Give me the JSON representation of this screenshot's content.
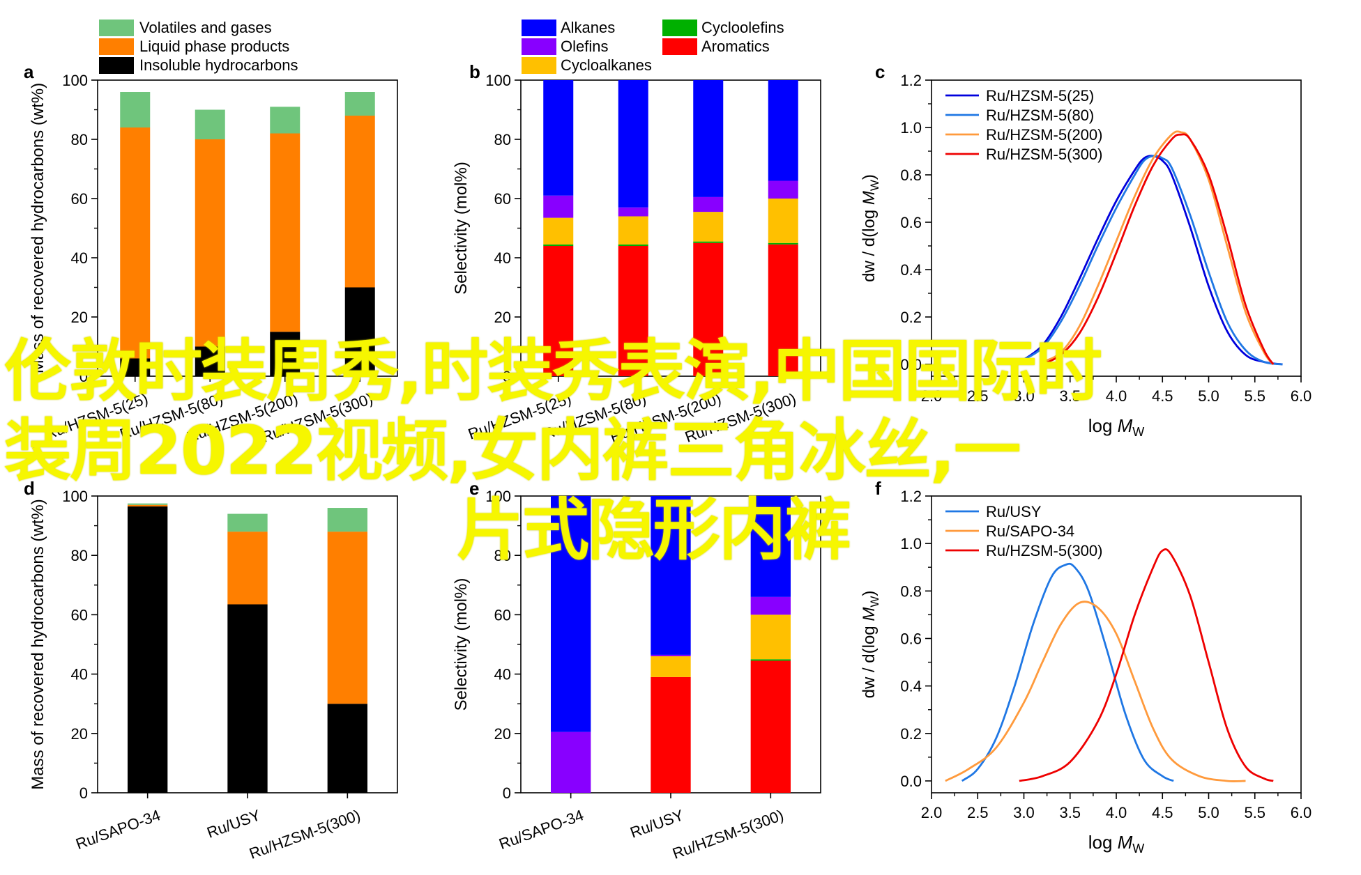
{
  "overlay": {
    "line1": "伦敦时装周秀,时装秀表演,中国国际时",
    "line2": "装周2022视频,女内裤三角冰丝,一",
    "line3": "片式隐形内裤"
  },
  "chart_data": [
    {
      "panel": "a",
      "type": "bar",
      "stacked": true,
      "ylabel": "Mass of recovered hydrocarbons (wt%)",
      "ylim": [
        0,
        100
      ],
      "yticks": [
        0,
        20,
        40,
        60,
        80,
        100
      ],
      "categories": [
        "Ru/HZSM-5(25)",
        "Ru/HZSM-5(80)",
        "Ru/HZSM-5(200)",
        "Ru/HZSM-5(300)"
      ],
      "legend": "top-left, outside plot",
      "series": [
        {
          "name": "Insoluble hydrocarbons",
          "color": "#000000",
          "values": [
            6,
            10,
            15,
            30
          ]
        },
        {
          "name": "Liquid phase products",
          "color": "#ff7f00",
          "values": [
            78,
            70,
            67,
            58
          ]
        },
        {
          "name": "Volatiles and gases",
          "color": "#6fc57c",
          "values": [
            12,
            10,
            9,
            8
          ]
        }
      ]
    },
    {
      "panel": "b",
      "type": "bar",
      "stacked": true,
      "ylabel": "Selectivity (mol%)",
      "ylim": [
        0,
        100
      ],
      "yticks": [
        0,
        20,
        40,
        60,
        80,
        100
      ],
      "categories": [
        "Ru/HZSM-5(25)",
        "Ru/HZSM-5(80)",
        "Ru/HZSM-5(200)",
        "Ru/HZSM-5(300)"
      ],
      "legend": "top, outside plot, two columns",
      "series": [
        {
          "name": "Aromatics",
          "color": "#ff0000",
          "values": [
            44,
            44,
            45,
            44.5
          ]
        },
        {
          "name": "Cycloolefins",
          "color": "#00b000",
          "values": [
            0.5,
            0.5,
            0.5,
            0.5
          ]
        },
        {
          "name": "Cycloalkanes",
          "color": "#ffc000",
          "values": [
            9,
            9.5,
            10,
            15
          ]
        },
        {
          "name": "Olefins",
          "color": "#8800ff",
          "values": [
            7.5,
            3,
            5,
            6
          ]
        },
        {
          "name": "Alkanes",
          "color": "#0000ff",
          "values": [
            39,
            43,
            39.5,
            34
          ]
        }
      ]
    },
    {
      "panel": "c",
      "type": "line",
      "xlabel": "log M_W",
      "ylabel": "dw / d(log M_W)",
      "xlim": [
        2.0,
        6.0
      ],
      "ylim": [
        -0.05,
        1.2
      ],
      "xticks": [
        2.0,
        2.5,
        3.0,
        3.5,
        4.0,
        4.5,
        5.0,
        5.5,
        6.0
      ],
      "yticks": [
        0.0,
        0.2,
        0.4,
        0.6,
        0.8,
        1.0,
        1.2
      ],
      "legend": "top-left",
      "series": [
        {
          "name": "Ru/HZSM-5(25)",
          "color": "#0000dd",
          "x": [
            3.0,
            3.2,
            3.4,
            3.6,
            3.8,
            4.0,
            4.2,
            4.3,
            4.4,
            4.5,
            4.6,
            4.8,
            5.0,
            5.2,
            5.4,
            5.6,
            5.8
          ],
          "y": [
            0.02,
            0.08,
            0.2,
            0.36,
            0.53,
            0.69,
            0.82,
            0.87,
            0.88,
            0.86,
            0.8,
            0.58,
            0.33,
            0.14,
            0.04,
            0.01,
            0.0
          ]
        },
        {
          "name": "Ru/HZSM-5(80)",
          "color": "#1f77e4",
          "x": [
            3.0,
            3.2,
            3.4,
            3.6,
            3.8,
            4.0,
            4.2,
            4.3,
            4.4,
            4.5,
            4.6,
            4.8,
            5.0,
            5.2,
            5.4,
            5.6,
            5.8
          ],
          "y": [
            0.02,
            0.07,
            0.18,
            0.33,
            0.5,
            0.66,
            0.8,
            0.86,
            0.88,
            0.87,
            0.83,
            0.63,
            0.39,
            0.18,
            0.06,
            0.01,
            0.0
          ]
        },
        {
          "name": "Ru/HZSM-5(200)",
          "color": "#ff9a3c",
          "x": [
            3.2,
            3.4,
            3.6,
            3.8,
            4.0,
            4.2,
            4.4,
            4.6,
            4.7,
            4.8,
            5.0,
            5.2,
            5.4,
            5.6,
            5.7
          ],
          "y": [
            0.01,
            0.05,
            0.16,
            0.33,
            0.52,
            0.71,
            0.87,
            0.97,
            0.98,
            0.95,
            0.78,
            0.5,
            0.22,
            0.05,
            0.0
          ]
        },
        {
          "name": "Ru/HZSM-5(300)",
          "color": "#ee0000",
          "x": [
            3.2,
            3.4,
            3.6,
            3.8,
            4.0,
            4.2,
            4.4,
            4.6,
            4.7,
            4.8,
            5.0,
            5.2,
            5.4,
            5.6,
            5.7
          ],
          "y": [
            0.0,
            0.04,
            0.13,
            0.28,
            0.47,
            0.67,
            0.84,
            0.95,
            0.97,
            0.95,
            0.8,
            0.54,
            0.25,
            0.06,
            0.0
          ]
        }
      ]
    },
    {
      "panel": "d",
      "type": "bar",
      "stacked": true,
      "ylabel": "Mass of recovered hydrocarbons (wt%)",
      "ylim": [
        0,
        100
      ],
      "yticks": [
        0,
        20,
        40,
        60,
        80,
        100
      ],
      "categories": [
        "Ru/SAPO-34",
        "Ru/USY",
        "Ru/HZSM-5(300)"
      ],
      "series": [
        {
          "name": "Insoluble hydrocarbons",
          "color": "#000000",
          "values": [
            96.5,
            63.5,
            30
          ]
        },
        {
          "name": "Liquid phase products",
          "color": "#ff7f00",
          "values": [
            0.5,
            24.5,
            58
          ]
        },
        {
          "name": "Volatiles and gases",
          "color": "#6fc57c",
          "values": [
            0.5,
            6,
            8
          ]
        }
      ]
    },
    {
      "panel": "e",
      "type": "bar",
      "stacked": true,
      "ylabel": "Selectivity (mol%)",
      "ylim": [
        0,
        100
      ],
      "yticks": [
        0,
        20,
        40,
        60,
        80,
        100
      ],
      "categories": [
        "Ru/SAPO-34",
        "Ru/USY",
        "Ru/HZSM-5(300)"
      ],
      "series": [
        {
          "name": "Aromatics",
          "color": "#ff0000",
          "values": [
            0,
            39,
            44.5
          ]
        },
        {
          "name": "Cycloolefins",
          "color": "#00b000",
          "values": [
            0,
            0,
            0.5
          ]
        },
        {
          "name": "Cycloalkanes",
          "color": "#ffc000",
          "values": [
            0,
            7,
            15
          ]
        },
        {
          "name": "Olefins",
          "color": "#8800ff",
          "values": [
            20.5,
            0.5,
            6
          ]
        },
        {
          "name": "Alkanes",
          "color": "#0000ff",
          "values": [
            79.5,
            53.5,
            34
          ]
        }
      ]
    },
    {
      "panel": "f",
      "type": "line",
      "xlabel": "log M_W",
      "ylabel": "dw / d(log M_W)",
      "xlim": [
        2.0,
        6.0
      ],
      "ylim": [
        -0.05,
        1.2
      ],
      "xticks": [
        2.0,
        2.5,
        3.0,
        3.5,
        4.0,
        4.5,
        5.0,
        5.5,
        6.0
      ],
      "yticks": [
        0.0,
        0.2,
        0.4,
        0.6,
        0.8,
        1.0,
        1.2
      ],
      "legend": "top-left",
      "series": [
        {
          "name": "Ru/USY",
          "color": "#1f77e4",
          "x": [
            2.33,
            2.5,
            2.7,
            2.9,
            3.1,
            3.3,
            3.45,
            3.55,
            3.7,
            3.9,
            4.1,
            4.3,
            4.5,
            4.62
          ],
          "y": [
            0.0,
            0.05,
            0.18,
            0.4,
            0.66,
            0.86,
            0.91,
            0.9,
            0.8,
            0.55,
            0.28,
            0.09,
            0.02,
            0.0
          ]
        },
        {
          "name": "Ru/SAPO-34",
          "color": "#ff9a3c",
          "x": [
            2.15,
            2.4,
            2.7,
            3.0,
            3.2,
            3.4,
            3.6,
            3.8,
            4.0,
            4.2,
            4.4,
            4.6,
            4.9,
            5.2,
            5.4
          ],
          "y": [
            0.0,
            0.05,
            0.14,
            0.33,
            0.5,
            0.66,
            0.75,
            0.73,
            0.62,
            0.42,
            0.22,
            0.09,
            0.02,
            0.0,
            0.0
          ]
        },
        {
          "name": "Ru/HZSM-5(300)",
          "color": "#ee0000",
          "x": [
            2.95,
            3.2,
            3.5,
            3.8,
            4.0,
            4.2,
            4.4,
            4.5,
            4.6,
            4.8,
            5.0,
            5.2,
            5.4,
            5.6,
            5.7
          ],
          "y": [
            0.0,
            0.02,
            0.08,
            0.25,
            0.45,
            0.7,
            0.9,
            0.97,
            0.95,
            0.78,
            0.5,
            0.22,
            0.06,
            0.01,
            0.0
          ]
        }
      ]
    }
  ]
}
